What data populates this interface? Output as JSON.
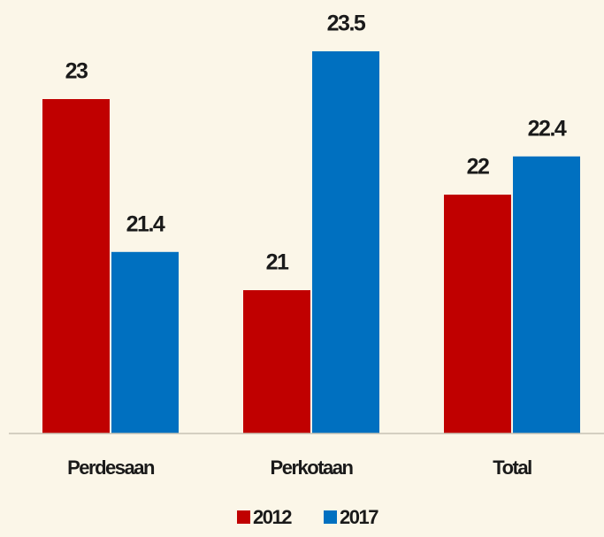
{
  "chart_data": {
    "type": "bar",
    "categories": [
      "Perdesaan",
      "Perkotaan",
      "Total"
    ],
    "series": [
      {
        "name": "2012",
        "color": "#c00000",
        "values": [
          23,
          21,
          22
        ]
      },
      {
        "name": "2017",
        "color": "#0070c0",
        "values": [
          21.4,
          23.5,
          22.4
        ]
      }
    ],
    "ylim": [
      19.5,
      24
    ],
    "legend": "bottom"
  }
}
